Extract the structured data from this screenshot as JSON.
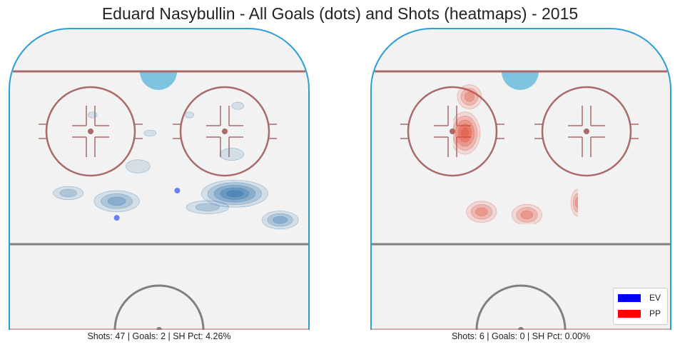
{
  "title": "Eduard Nasybullin - All Goals (dots) and Shots (heatmaps) - 2015",
  "colors": {
    "rink_surface": "#f2f2f2",
    "boards": "#2a9fd6",
    "red_line": "#a86a6a",
    "blue_line": "#808080",
    "crease": "#7ec4e0",
    "ev_shots": "#3a78b0",
    "pp_shots": "#e0533f",
    "goal_dot": "#6a7ff0"
  },
  "legend": {
    "items": [
      {
        "label": "EV",
        "color": "#0000ff"
      },
      {
        "label": "PP",
        "color": "#ff0000"
      }
    ]
  },
  "chart_data": [
    {
      "type": "heatmap",
      "panel": "left",
      "title": "",
      "caption": "Shots: 47 | Goals: 2 | SH Pct: 4.26%",
      "stats": {
        "shots": 47,
        "goals": 2,
        "sh_pct": 4.26
      },
      "series": [
        {
          "name": "EV",
          "color": "#3a78b0",
          "shot_hotspots": [
            {
              "x": 0.75,
              "y": 0.55,
              "rx": 0.11,
              "ry": 0.045,
              "level": 5
            },
            {
              "x": 0.36,
              "y": 0.575,
              "rx": 0.075,
              "ry": 0.035,
              "level": 3
            },
            {
              "x": 0.2,
              "y": 0.548,
              "rx": 0.05,
              "ry": 0.022,
              "level": 2
            },
            {
              "x": 0.9,
              "y": 0.637,
              "rx": 0.06,
              "ry": 0.03,
              "level": 3
            },
            {
              "x": 0.66,
              "y": 0.595,
              "rx": 0.07,
              "ry": 0.022,
              "level": 2
            },
            {
              "x": 0.43,
              "y": 0.46,
              "rx": 0.04,
              "ry": 0.022,
              "level": 1
            },
            {
              "x": 0.74,
              "y": 0.42,
              "rx": 0.04,
              "ry": 0.02,
              "level": 1
            },
            {
              "x": 0.6,
              "y": 0.29,
              "rx": 0.015,
              "ry": 0.01,
              "level": 1
            },
            {
              "x": 0.28,
              "y": 0.29,
              "rx": 0.015,
              "ry": 0.01,
              "level": 1
            },
            {
              "x": 0.47,
              "y": 0.35,
              "rx": 0.02,
              "ry": 0.01,
              "level": 1
            },
            {
              "x": 0.76,
              "y": 0.26,
              "rx": 0.02,
              "ry": 0.012,
              "level": 1
            }
          ],
          "goals": [
            {
              "x": 0.56,
              "y": 0.54
            },
            {
              "x": 0.36,
              "y": 0.63
            }
          ]
        }
      ]
    },
    {
      "type": "heatmap",
      "panel": "right",
      "title": "",
      "caption": "Shots: 6 | Goals: 0 | SH Pct: 0.00%",
      "stats": {
        "shots": 6,
        "goals": 0,
        "sh_pct": 0.0
      },
      "series": [
        {
          "name": "PP",
          "color": "#e0533f",
          "shot_hotspots": [
            {
              "x": 0.315,
              "y": 0.35,
              "rx": 0.05,
              "ry": 0.07,
              "level": 5
            },
            {
              "x": 0.33,
              "y": 0.23,
              "rx": 0.04,
              "ry": 0.04,
              "level": 3
            },
            {
              "x": 0.37,
              "y": 0.61,
              "rx": 0.05,
              "ry": 0.035,
              "level": 3
            },
            {
              "x": 0.52,
              "y": 0.62,
              "rx": 0.05,
              "ry": 0.035,
              "level": 3
            },
            {
              "x": 0.69,
              "y": 0.58,
              "rx": 0.025,
              "ry": 0.045,
              "level": 3
            }
          ],
          "goals": []
        }
      ]
    }
  ]
}
